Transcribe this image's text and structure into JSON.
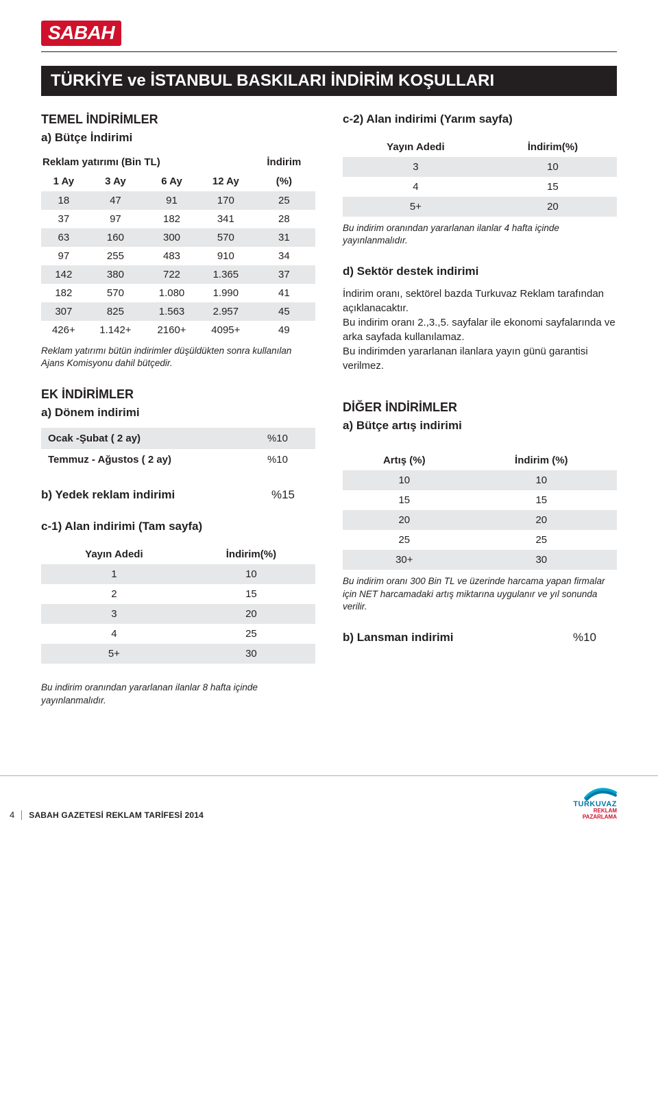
{
  "colors": {
    "brand_red": "#d0112b",
    "bar_black": "#231f20",
    "shade": "#e6e7e8",
    "text": "#231f20",
    "footer_blue": "#0079a5"
  },
  "logo_text": "SABAH",
  "title": "TÜRKİYE ve İSTANBUL BASKILARI İNDİRİM KOŞULLARI",
  "left": {
    "temel_title": "TEMEL İNDİRİMLER",
    "butce_title": "a) Bütçe İndirimi",
    "budget_table": {
      "super_left": "Reklam yatırımı (Bin TL)",
      "super_right": "İndirim",
      "headers": [
        "1 Ay",
        "3 Ay",
        "6 Ay",
        "12 Ay",
        "(%)"
      ],
      "rows": [
        [
          "18",
          "47",
          "91",
          "170",
          "25"
        ],
        [
          "37",
          "97",
          "182",
          "341",
          "28"
        ],
        [
          "63",
          "160",
          "300",
          "570",
          "31"
        ],
        [
          "97",
          "255",
          "483",
          "910",
          "34"
        ],
        [
          "142",
          "380",
          "722",
          "1.365",
          "37"
        ],
        [
          "182",
          "570",
          "1.080",
          "1.990",
          "41"
        ],
        [
          "307",
          "825",
          "1.563",
          "2.957",
          "45"
        ],
        [
          "426+",
          "1.142+",
          "2160+",
          "4095+",
          "49"
        ]
      ],
      "shaded_rows": [
        0,
        2,
        4,
        6
      ]
    },
    "budget_note": "Reklam yatırımı bütün indirimler düşüldükten sonra kullanılan Ajans Komisyonu dahil bütçedir.",
    "ek_title": "EK İNDİRİMLER",
    "donem_title": "a) Dönem indirimi",
    "period_table": {
      "rows": [
        [
          "Ocak -Şubat ( 2 ay)",
          "%10"
        ],
        [
          "Temmuz - Ağustos ( 2 ay)",
          "%10"
        ]
      ],
      "shaded_rows": [
        0
      ]
    },
    "yedek_title": "b) Yedek reklam indirimi",
    "yedek_val": "%15",
    "c1_title": "c-1) Alan indirimi (Tam sayfa)",
    "c1_table": {
      "headers": [
        "Yayın Adedi",
        "İndirim(%)"
      ],
      "rows": [
        [
          "1",
          "10"
        ],
        [
          "2",
          "15"
        ],
        [
          "3",
          "20"
        ],
        [
          "4",
          "25"
        ],
        [
          "5+",
          "30"
        ]
      ],
      "shaded_rows": [
        0,
        2,
        4
      ]
    },
    "c1_note": "Bu indirim oranından yararlanan ilanlar 8 hafta içinde yayınlanmalıdır."
  },
  "right": {
    "c2_title": "c-2) Alan indirimi (Yarım sayfa)",
    "c2_table": {
      "headers": [
        "Yayın Adedi",
        "İndirim(%)"
      ],
      "rows": [
        [
          "3",
          "10"
        ],
        [
          "4",
          "15"
        ],
        [
          "5+",
          "20"
        ]
      ],
      "shaded_rows": [
        0,
        2
      ]
    },
    "c2_note": "Bu indirim oranından yararlanan ilanlar 4 hafta içinde yayınlanmalıdır.",
    "d_title": "d) Sektör destek indirimi",
    "d_body": "İndirim oranı, sektörel bazda Turkuvaz Reklam tarafından açıklanacaktır.\nBu indirim oranı 2.,3.,5. sayfalar ile ekonomi sayfalarında ve arka sayfada kullanılamaz.\nBu indirimden yararlanan ilanlara yayın günü garantisi verilmez.",
    "diger_title": "DİĞER İNDİRİMLER",
    "butce_artis_title": "a) Bütçe artış indirimi",
    "artis_table": {
      "headers": [
        "Artış (%)",
        "İndirim (%)"
      ],
      "rows": [
        [
          "10",
          "10"
        ],
        [
          "15",
          "15"
        ],
        [
          "20",
          "20"
        ],
        [
          "25",
          "25"
        ],
        [
          "30+",
          "30"
        ]
      ],
      "shaded_rows": [
        0,
        2,
        4
      ]
    },
    "artis_note": "Bu indirim oranı 300 Bin TL ve üzerinde harcama yapan firmalar için NET harcamadaki artış miktarına uygulanır ve yıl sonunda verilir.",
    "lansman_title": "b) Lansman indirimi",
    "lansman_val": "%10"
  },
  "footer": {
    "page": "4",
    "title": "SABAH GAZETESİ REKLAM TARİFESİ 2014",
    "brand": "TURKUVAZ",
    "sub1": "REKLAM",
    "sub2": "PAZARLAMA"
  }
}
